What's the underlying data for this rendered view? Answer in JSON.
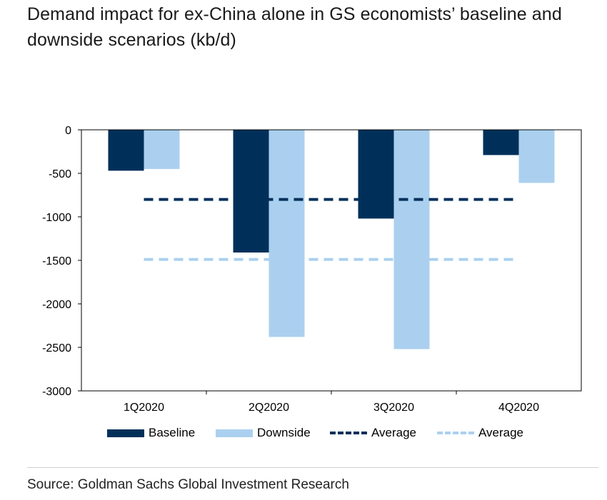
{
  "title": "Demand impact for ex-China alone in GS economists’ baseline and downside scenarios (kb/d)",
  "source": "Source: Goldman Sachs Global Investment Research",
  "colors": {
    "baseline": "#00305a",
    "downside": "#abd0ef",
    "avg_baseline": "#00305a",
    "avg_downside": "#abd0ef"
  },
  "chart_data": {
    "type": "bar",
    "categories": [
      "1Q2020",
      "2Q2020",
      "3Q2020",
      "4Q2020"
    ],
    "series": [
      {
        "name": "Baseline",
        "values": [
          -470,
          -1410,
          -1020,
          -290
        ]
      },
      {
        "name": "Downside",
        "values": [
          -450,
          -2380,
          -2520,
          -610
        ]
      }
    ],
    "averages": [
      {
        "name": "Average",
        "value": -800
      },
      {
        "name": "Average",
        "value": -1490
      }
    ],
    "ylim": [
      -3000,
      0
    ],
    "yticks": [
      "0",
      "-500",
      "-1000",
      "-1500",
      "-2000",
      "-2500",
      "-3000"
    ],
    "grid": false,
    "legend_position": "bottom"
  },
  "legend": [
    {
      "label": "Baseline",
      "kind": "bar",
      "color": "#00305a"
    },
    {
      "label": "Downside",
      "kind": "bar",
      "color": "#abd0ef"
    },
    {
      "label": "Average",
      "kind": "dash",
      "color": "#00305a"
    },
    {
      "label": "Average",
      "kind": "dash",
      "color": "#abd0ef"
    }
  ]
}
